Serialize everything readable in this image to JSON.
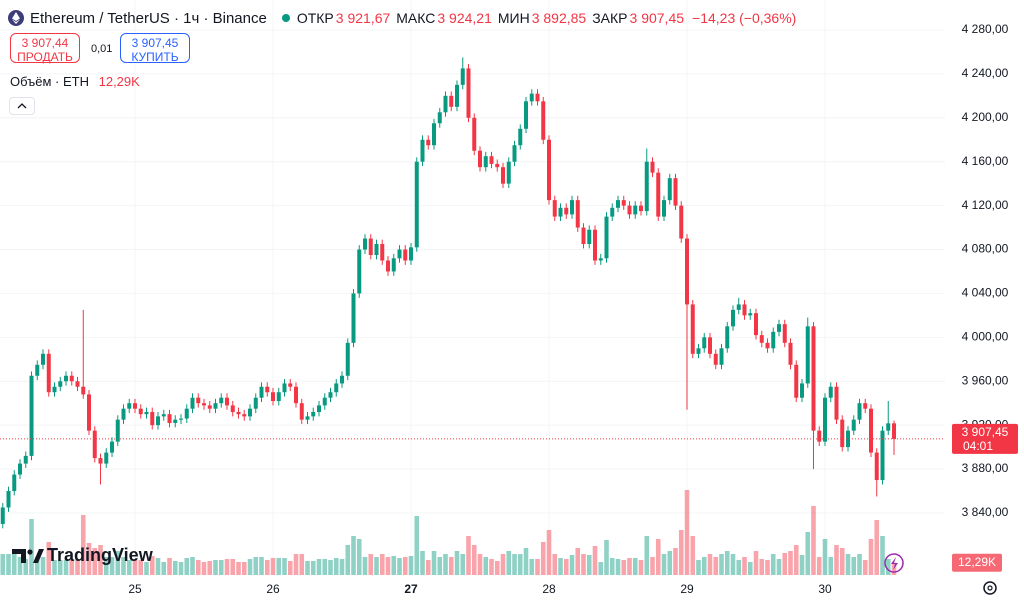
{
  "header": {
    "symbol": "Ethereum / TetherUS · 1ч · Binance",
    "open_label": "ОТКР",
    "open": "3 921,67",
    "high_label": "МАКС",
    "high": "3 924,21",
    "low_label": "МИН",
    "low": "3 892,85",
    "close_label": "ЗАКР",
    "close": "3 907,45",
    "change": "−14,23 (−0,36%)",
    "sell_price": "3 907,44",
    "sell": "ПРОДАТЬ",
    "spread": "0,01",
    "buy_price": "3 907,45",
    "buy": "КУПИТЬ",
    "volume_title": "Объём · ETH",
    "volume_value": "12,29K",
    "logo": "TradingView"
  },
  "chart_data": {
    "type": "candlestick",
    "up_color": "#089981",
    "down_color": "#f23645",
    "grid": true,
    "xlim": [
      0.52,
      164.87
    ],
    "ylim": [
      3783.5,
      4307.3
    ],
    "volume_ylim": [
      0,
      575
    ],
    "xticks": [
      {
        "value": 24,
        "label": "25"
      },
      {
        "value": 48,
        "label": "26"
      },
      {
        "value": 72,
        "label": "27"
      },
      {
        "value": 96,
        "label": "28"
      },
      {
        "value": 120,
        "label": "29"
      },
      {
        "value": 144,
        "label": "30"
      }
    ],
    "yticks": [
      {
        "value": 3840,
        "label": "3 840,00"
      },
      {
        "value": 3880,
        "label": "3 880,00"
      },
      {
        "value": 3920,
        "label": "3 920,00"
      },
      {
        "value": 3960,
        "label": "3 960,00"
      },
      {
        "value": 4000,
        "label": "4 000,00"
      },
      {
        "value": 4040,
        "label": "4 040,00"
      },
      {
        "value": 4080,
        "label": "4 080,00"
      },
      {
        "value": 4120,
        "label": "4 120,00"
      },
      {
        "value": 4160,
        "label": "4 160,00"
      },
      {
        "value": 4200,
        "label": "4 200,00"
      },
      {
        "value": 4240,
        "label": "4 240,00"
      },
      {
        "value": 4280,
        "label": "4 280,00"
      }
    ],
    "last_price_label": "3 907,45",
    "countdown": "04:01",
    "volume_label": "12,29K",
    "x": [
      1,
      2,
      3,
      4,
      5,
      6,
      7,
      8,
      9,
      10,
      11,
      12,
      13,
      14,
      15,
      16,
      17,
      18,
      19,
      20,
      21,
      22,
      23,
      24,
      25,
      26,
      27,
      28,
      29,
      30,
      31,
      32,
      33,
      34,
      35,
      36,
      37,
      38,
      39,
      40,
      41,
      42,
      43,
      44,
      45,
      46,
      47,
      48,
      49,
      50,
      51,
      52,
      53,
      54,
      55,
      56,
      57,
      58,
      59,
      60,
      61,
      62,
      63,
      64,
      65,
      66,
      67,
      68,
      69,
      70,
      71,
      72,
      73,
      74,
      75,
      76,
      77,
      78,
      79,
      80,
      81,
      82,
      83,
      84,
      85,
      86,
      87,
      88,
      89,
      90,
      91,
      92,
      93,
      94,
      95,
      96,
      97,
      98,
      99,
      100,
      101,
      102,
      103,
      104,
      105,
      106,
      107,
      108,
      109,
      110,
      111,
      112,
      113,
      114,
      115,
      116,
      117,
      118,
      119,
      120,
      121,
      122,
      123,
      124,
      125,
      126,
      127,
      128,
      129,
      130,
      131,
      132,
      133,
      134,
      135,
      136,
      137,
      138,
      139,
      140,
      141,
      142,
      143,
      144,
      145,
      146,
      147,
      148,
      149,
      150,
      151,
      152,
      153,
      154,
      155,
      156
    ],
    "open": [
      3830,
      3845,
      3860,
      3875,
      3885,
      3892,
      3965,
      3975,
      3985,
      3950,
      3955,
      3960,
      3965,
      3960,
      3955,
      3948,
      3915,
      3890,
      3885,
      3895,
      3905,
      3925,
      3935,
      3940,
      3935,
      3930,
      3932,
      3920,
      3928,
      3930,
      3922,
      3925,
      3926,
      3935,
      3945,
      3940,
      3938,
      3935,
      3940,
      3945,
      3938,
      3932,
      3930,
      3928,
      3935,
      3945,
      3955,
      3950,
      3942,
      3950,
      3958,
      3955,
      3940,
      3925,
      3928,
      3932,
      3938,
      3945,
      3950,
      3958,
      3965,
      3995,
      4040,
      4080,
      4090,
      4075,
      4085,
      4070,
      4060,
      4072,
      4080,
      4070,
      4082,
      4160,
      4180,
      4175,
      4195,
      4205,
      4220,
      4210,
      4230,
      4245,
      4200,
      4170,
      4155,
      4165,
      4158,
      4155,
      4140,
      4160,
      4175,
      4190,
      4215,
      4222,
      4215,
      4180,
      4125,
      4110,
      4118,
      4112,
      4125,
      4100,
      4085,
      4098,
      4070,
      4072,
      4110,
      4118,
      4125,
      4120,
      4112,
      4120,
      4115,
      4160,
      4150,
      4110,
      4125,
      4145,
      4120,
      4090,
      4030,
      3985,
      3990,
      4000,
      3985,
      3975,
      3990,
      4010,
      4025,
      4030,
      4020,
      4022,
      4002,
      3995,
      3990,
      4005,
      4012,
      3995,
      3975,
      3945,
      3958,
      4010,
      3915,
      3905,
      3945,
      3955,
      3925,
      3900,
      3915,
      3925,
      3940,
      3935,
      3895,
      3870,
      3915,
      3921.67
    ],
    "high": [
      3849,
      3864,
      3879,
      3889,
      3896,
      3969,
      3979,
      3989,
      3989,
      3959,
      3964,
      3969,
      3969,
      3964,
      4025,
      3952,
      3919,
      3894,
      3899,
      3909,
      3929,
      3939,
      3944,
      3944,
      3939,
      3936,
      3936,
      3932,
      3934,
      3934,
      3929,
      3930,
      3939,
      3949,
      3949,
      3944,
      3942,
      3944,
      3949,
      3949,
      3942,
      3936,
      3934,
      3939,
      3949,
      3959,
      3959,
      3954,
      3954,
      3962,
      3962,
      3959,
      3944,
      3932,
      3936,
      3942,
      3949,
      3954,
      3962,
      3969,
      3999,
      4044,
      4084,
      4094,
      4094,
      4089,
      4089,
      4074,
      4076,
      4084,
      4084,
      4086,
      4164,
      4184,
      4184,
      4199,
      4209,
      4224,
      4224,
      4234,
      4255,
      4249,
      4204,
      4174,
      4169,
      4169,
      4162,
      4159,
      4164,
      4179,
      4194,
      4219,
      4226,
      4226,
      4219,
      4184,
      4129,
      4122,
      4122,
      4129,
      4129,
      4104,
      4102,
      4102,
      4076,
      4114,
      4122,
      4129,
      4129,
      4124,
      4124,
      4124,
      4172,
      4164,
      4154,
      4129,
      4149,
      4149,
      4124,
      4094,
      4034,
      3994,
      4004,
      4004,
      3989,
      3994,
      4014,
      4029,
      4036,
      4034,
      4026,
      4026,
      4006,
      3999,
      4009,
      4016,
      4016,
      3999,
      3979,
      3962,
      4018,
      4014,
      3919,
      3949,
      3959,
      3959,
      3929,
      3919,
      3929,
      3944,
      3944,
      3939,
      3899,
      3919,
      3942,
      3924.21
    ],
    "low": [
      3826,
      3841,
      3856,
      3871,
      3881,
      3888,
      3961,
      3971,
      3946,
      3946,
      3951,
      3956,
      3956,
      3951,
      3944,
      3911,
      3886,
      3866,
      3881,
      3891,
      3901,
      3921,
      3931,
      3931,
      3926,
      3926,
      3916,
      3916,
      3924,
      3918,
      3918,
      3921,
      3922,
      3931,
      3936,
      3934,
      3931,
      3931,
      3936,
      3934,
      3928,
      3926,
      3924,
      3924,
      3931,
      3941,
      3946,
      3938,
      3938,
      3946,
      3951,
      3936,
      3921,
      3921,
      3924,
      3928,
      3934,
      3941,
      3946,
      3954,
      3961,
      3991,
      4036,
      4076,
      4071,
      4071,
      4066,
      4056,
      4056,
      4068,
      4066,
      4066,
      4078,
      4156,
      4171,
      4171,
      4191,
      4201,
      4206,
      4206,
      4226,
      4196,
      4166,
      4151,
      4151,
      4154,
      4151,
      4136,
      4136,
      4156,
      4171,
      4186,
      4211,
      4211,
      4176,
      4121,
      4106,
      4106,
      4108,
      4108,
      4096,
      4081,
      4081,
      4066,
      4066,
      4068,
      4106,
      4114,
      4116,
      4108,
      4108,
      4111,
      4111,
      4146,
      4106,
      4106,
      4121,
      4116,
      4086,
      3934,
      3981,
      3981,
      3986,
      3981,
      3971,
      3971,
      3986,
      4006,
      4021,
      4016,
      4016,
      3998,
      3991,
      3986,
      3986,
      4001,
      3991,
      3971,
      3941,
      3941,
      3954,
      3880,
      3901,
      3901,
      3941,
      3921,
      3896,
      3896,
      3911,
      3921,
      3931,
      3891,
      3855,
      3866,
      3911,
      3892.85
    ],
    "close": [
      3845,
      3860,
      3875,
      3885,
      3892,
      3965,
      3975,
      3985,
      3950,
      3955,
      3960,
      3965,
      3960,
      3955,
      3948,
      3915,
      3890,
      3885,
      3895,
      3905,
      3925,
      3935,
      3940,
      3935,
      3930,
      3932,
      3920,
      3928,
      3930,
      3922,
      3925,
      3926,
      3935,
      3945,
      3940,
      3938,
      3935,
      3940,
      3945,
      3938,
      3932,
      3930,
      3928,
      3935,
      3945,
      3955,
      3950,
      3942,
      3950,
      3958,
      3955,
      3940,
      3925,
      3928,
      3932,
      3938,
      3945,
      3950,
      3958,
      3965,
      3995,
      4040,
      4080,
      4090,
      4075,
      4085,
      4070,
      4060,
      4072,
      4080,
      4070,
      4082,
      4160,
      4180,
      4175,
      4195,
      4205,
      4220,
      4210,
      4230,
      4245,
      4200,
      4170,
      4155,
      4165,
      4158,
      4155,
      4140,
      4160,
      4175,
      4190,
      4215,
      4222,
      4215,
      4180,
      4125,
      4110,
      4118,
      4112,
      4125,
      4100,
      4085,
      4098,
      4070,
      4072,
      4110,
      4118,
      4125,
      4120,
      4112,
      4120,
      4115,
      4160,
      4150,
      4110,
      4125,
      4145,
      4120,
      4090,
      4030,
      3985,
      3990,
      4000,
      3985,
      3975,
      3990,
      4010,
      4025,
      4030,
      4020,
      4022,
      4002,
      3995,
      3990,
      4005,
      4012,
      3995,
      3975,
      3945,
      3958,
      4010,
      3915,
      3905,
      3945,
      3955,
      3925,
      3900,
      3915,
      3925,
      3940,
      3935,
      3895,
      3870,
      3915,
      3921.67,
      3907.45
    ],
    "volume": [
      21,
      21,
      21,
      18,
      16,
      56,
      18,
      18,
      33,
      15,
      15,
      15,
      15,
      15,
      60,
      32,
      27,
      30,
      18,
      18,
      24,
      18,
      15,
      15,
      15,
      13,
      19,
      17,
      13,
      17,
      14,
      13,
      17,
      18,
      15,
      13,
      14,
      15,
      15,
      16,
      16,
      13,
      13,
      16,
      18,
      18,
      15,
      17,
      17,
      17,
      14,
      21,
      21,
      14,
      14,
      16,
      16,
      15,
      17,
      16,
      30,
      39,
      36,
      18,
      21,
      18,
      21,
      18,
      19,
      17,
      18,
      19,
      59,
      24,
      15,
      24,
      18,
      21,
      18,
      24,
      21,
      39,
      30,
      21,
      18,
      16,
      14,
      21,
      24,
      21,
      21,
      27,
      16,
      16,
      33,
      45,
      21,
      17,
      16,
      20,
      27,
      21,
      20,
      29,
      13,
      35,
      17,
      16,
      15,
      17,
      17,
      15,
      39,
      18,
      36,
      21,
      24,
      27,
      45,
      85,
      39,
      15,
      18,
      21,
      18,
      21,
      24,
      21,
      15,
      18,
      13,
      24,
      16,
      15,
      21,
      16,
      22,
      24,
      30,
      20,
      43,
      69,
      18,
      36,
      18,
      30,
      27,
      21,
      18,
      21,
      15,
      36,
      55,
      39,
      16,
      12.29
    ]
  }
}
